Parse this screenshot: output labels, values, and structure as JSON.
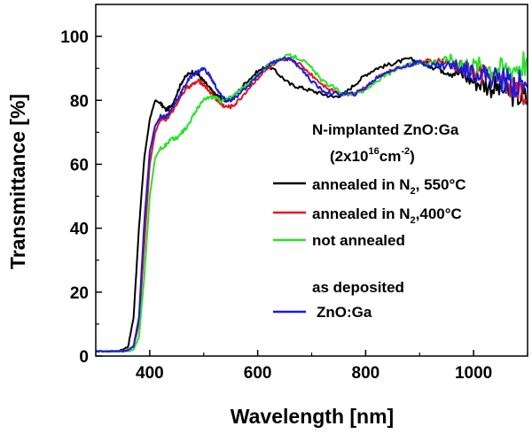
{
  "chart_data": {
    "type": "line",
    "title": "",
    "xlabel": "Wavelength [nm]",
    "ylabel": "Transmittance [%]",
    "xlim": [
      300,
      1100
    ],
    "ylim": [
      0,
      110
    ],
    "xticks": [
      400,
      600,
      800,
      1000
    ],
    "yticks": [
      0,
      20,
      40,
      60,
      80,
      100
    ],
    "xtick_labels": [
      "400",
      "600",
      "800",
      "1000"
    ],
    "ytick_labels": [
      "0",
      "20",
      "40",
      "60",
      "80",
      "100"
    ],
    "legend": {
      "heading": "N-implanted ZnO:Ga",
      "dose_prefix": "(2x10",
      "dose_exp": "16",
      "dose_unit": "cm",
      "dose_unit_exp": "-2",
      "dose_suffix": ")",
      "group2_heading": "as deposited"
    },
    "series": [
      {
        "name": "annealed in N2, 550°C",
        "label_pre": "annealed in N",
        "label_sub": "2",
        "label_post": ", 550°C",
        "color": "#000000",
        "x": [
          300,
          320,
          340,
          350,
          360,
          370,
          380,
          390,
          400,
          410,
          420,
          430,
          440,
          450,
          460,
          470,
          480,
          490,
          500,
          510,
          520,
          530,
          540,
          550,
          560,
          580,
          600,
          620,
          640,
          660,
          680,
          700,
          720,
          740,
          760,
          780,
          800,
          820,
          840,
          860,
          880,
          900,
          920,
          940,
          960,
          980,
          1000,
          1020,
          1040,
          1060,
          1080,
          1100
        ],
        "y": [
          1.5,
          1.5,
          1.5,
          2,
          3,
          12,
          40,
          62,
          74,
          80,
          79,
          77,
          78,
          82,
          86,
          88,
          89,
          88,
          86,
          84,
          82,
          81,
          80,
          80,
          82,
          86,
          89,
          91,
          88,
          85,
          84,
          83,
          82,
          81,
          82,
          85,
          88,
          90,
          91,
          92,
          93,
          92,
          91,
          90,
          89,
          88,
          86,
          85,
          84,
          83,
          82,
          80
        ]
      },
      {
        "name": "annealed in N2,400°C",
        "label_pre": "annealed in N",
        "label_sub": "2",
        "label_post": ",400°C",
        "color": "#e8141a",
        "x": [
          300,
          320,
          340,
          350,
          360,
          370,
          380,
          390,
          400,
          410,
          420,
          430,
          440,
          450,
          460,
          470,
          480,
          490,
          500,
          510,
          520,
          530,
          540,
          550,
          560,
          580,
          600,
          620,
          640,
          660,
          680,
          700,
          720,
          740,
          760,
          780,
          800,
          820,
          840,
          860,
          880,
          900,
          920,
          940,
          960,
          980,
          1000,
          1020,
          1040,
          1060,
          1080,
          1100
        ],
        "y": [
          1.5,
          1.5,
          1.5,
          1.5,
          2,
          3,
          10,
          35,
          60,
          70,
          74,
          74,
          76,
          79,
          82,
          84,
          85,
          86,
          85,
          83,
          81,
          79,
          78,
          78,
          79,
          83,
          87,
          90,
          92,
          93,
          91,
          88,
          85,
          83,
          82,
          82,
          84,
          87,
          89,
          90,
          91,
          92,
          92,
          92,
          91,
          90,
          89,
          88,
          87,
          86,
          84,
          80
        ]
      },
      {
        "name": "not annealed",
        "label_pre": "not annealed",
        "label_sub": "",
        "label_post": "",
        "color": "#22e622",
        "x": [
          300,
          320,
          340,
          350,
          360,
          370,
          380,
          390,
          400,
          410,
          420,
          430,
          440,
          450,
          460,
          470,
          480,
          490,
          500,
          510,
          520,
          530,
          540,
          550,
          560,
          580,
          600,
          620,
          640,
          660,
          680,
          700,
          720,
          740,
          760,
          780,
          800,
          820,
          840,
          860,
          880,
          900,
          920,
          940,
          960,
          980,
          1000,
          1020,
          1040,
          1060,
          1080,
          1100
        ],
        "y": [
          1.5,
          1.5,
          1.5,
          1.5,
          1.5,
          2,
          6,
          25,
          50,
          62,
          65,
          66,
          68,
          68,
          70,
          72,
          75,
          78,
          80,
          81,
          81,
          80,
          80,
          81,
          82,
          85,
          88,
          91,
          93,
          94,
          93,
          90,
          86,
          84,
          82,
          82,
          83,
          86,
          88,
          90,
          91,
          92,
          92,
          92,
          93,
          92,
          91,
          91,
          90,
          90,
          91,
          93
        ]
      },
      {
        "name": "ZnO:Ga",
        "label_pre": "ZnO:Ga",
        "label_sub": "",
        "label_post": "",
        "color": "#1a1ae8",
        "x": [
          300,
          320,
          340,
          350,
          360,
          370,
          380,
          390,
          400,
          410,
          420,
          430,
          440,
          450,
          460,
          470,
          480,
          490,
          500,
          510,
          520,
          530,
          540,
          550,
          560,
          580,
          600,
          620,
          640,
          660,
          680,
          700,
          720,
          740,
          760,
          780,
          800,
          820,
          840,
          860,
          880,
          900,
          920,
          940,
          960,
          980,
          1000,
          1020,
          1040,
          1060,
          1080,
          1100
        ],
        "y": [
          1.5,
          1.5,
          1.5,
          1.5,
          1.8,
          3,
          12,
          42,
          64,
          72,
          75,
          75,
          77,
          80,
          83,
          86,
          88,
          89,
          90,
          88,
          85,
          82,
          80,
          80,
          81,
          84,
          88,
          91,
          93,
          93,
          90,
          86,
          83,
          82,
          82,
          82,
          84,
          87,
          89,
          90,
          91,
          92,
          91,
          91,
          91,
          90,
          89,
          88,
          87,
          86,
          85,
          84
        ]
      }
    ]
  }
}
